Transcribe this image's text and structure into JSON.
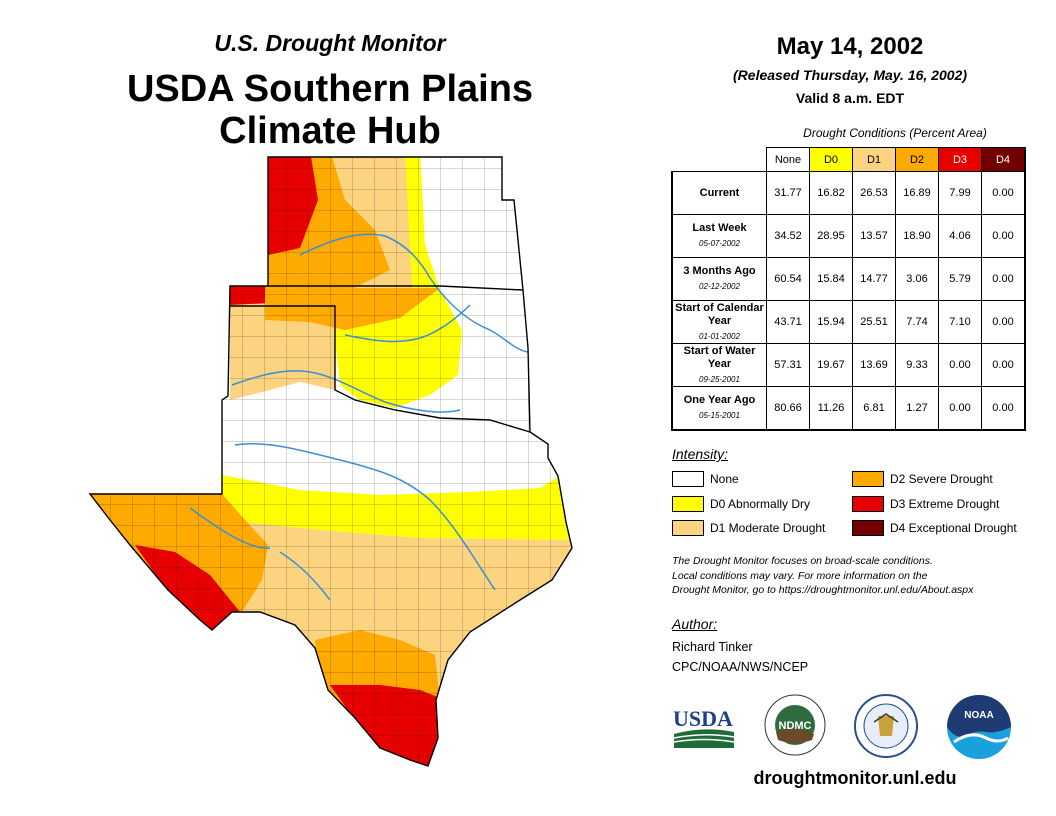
{
  "header": {
    "subtitle": "U.S. Drought Monitor",
    "title_line1": "USDA Southern Plains",
    "title_line2": "Climate Hub"
  },
  "date": {
    "main": "May 14, 2002",
    "released": "(Released Thursday, May. 16, 2002)",
    "valid": "Valid 8 a.m. EDT"
  },
  "table": {
    "caption": "Drought Conditions (Percent Area)",
    "columns": [
      "None",
      "D0",
      "D1",
      "D2",
      "D3",
      "D4"
    ],
    "column_colors": [
      "#ffffff",
      "#ffff00",
      "#fcd37f",
      "#ffaa00",
      "#e60000",
      "#730000"
    ],
    "rows": [
      {
        "label": "Current",
        "sub": "",
        "values": [
          "31.77",
          "16.82",
          "26.53",
          "16.89",
          "7.99",
          "0.00"
        ]
      },
      {
        "label": "Last Week",
        "sub": "05-07-2002",
        "values": [
          "34.52",
          "28.95",
          "13.57",
          "18.90",
          "4.06",
          "0.00"
        ]
      },
      {
        "label": "3 Months Ago",
        "sub": "02-12-2002",
        "values": [
          "60.54",
          "15.84",
          "14.77",
          "3.06",
          "5.79",
          "0.00"
        ]
      },
      {
        "label": "Start of Calendar Year",
        "sub": "01-01-2002",
        "values": [
          "43.71",
          "15.94",
          "25.51",
          "7.74",
          "7.10",
          "0.00"
        ]
      },
      {
        "label": "Start of Water Year",
        "sub": "09-25-2001",
        "values": [
          "57.31",
          "19.67",
          "13.69",
          "9.33",
          "0.00",
          "0.00"
        ]
      },
      {
        "label": "One Year Ago",
        "sub": "05-15-2001",
        "values": [
          "80.66",
          "11.26",
          "6.81",
          "1.27",
          "0.00",
          "0.00"
        ]
      }
    ]
  },
  "legend": {
    "heading": "Intensity:",
    "items": [
      {
        "label": "None",
        "color": "#ffffff"
      },
      {
        "label": "D0 Abnormally Dry",
        "color": "#ffff00"
      },
      {
        "label": "D1 Moderate Drought",
        "color": "#fcd37f"
      },
      {
        "label": "D2 Severe Drought",
        "color": "#ffaa00"
      },
      {
        "label": "D3 Extreme Drought",
        "color": "#e60000"
      },
      {
        "label": "D4 Exceptional Drought",
        "color": "#730000"
      }
    ]
  },
  "note": {
    "line1": "The Drought Monitor focuses on broad-scale conditions.",
    "line2": "Local conditions may vary. For more information on the",
    "line3": "Drought Monitor, go to https://droughtmonitor.unl.edu/About.aspx"
  },
  "author": {
    "heading": "Author:",
    "name": "Richard Tinker",
    "org": "CPC/NOAA/NWS/NCEP"
  },
  "logos": {
    "usda": "USDA",
    "ndmc": "NDMC",
    "noaa": "NOAA"
  },
  "footer": {
    "url": "droughtmonitor.unl.edu"
  }
}
